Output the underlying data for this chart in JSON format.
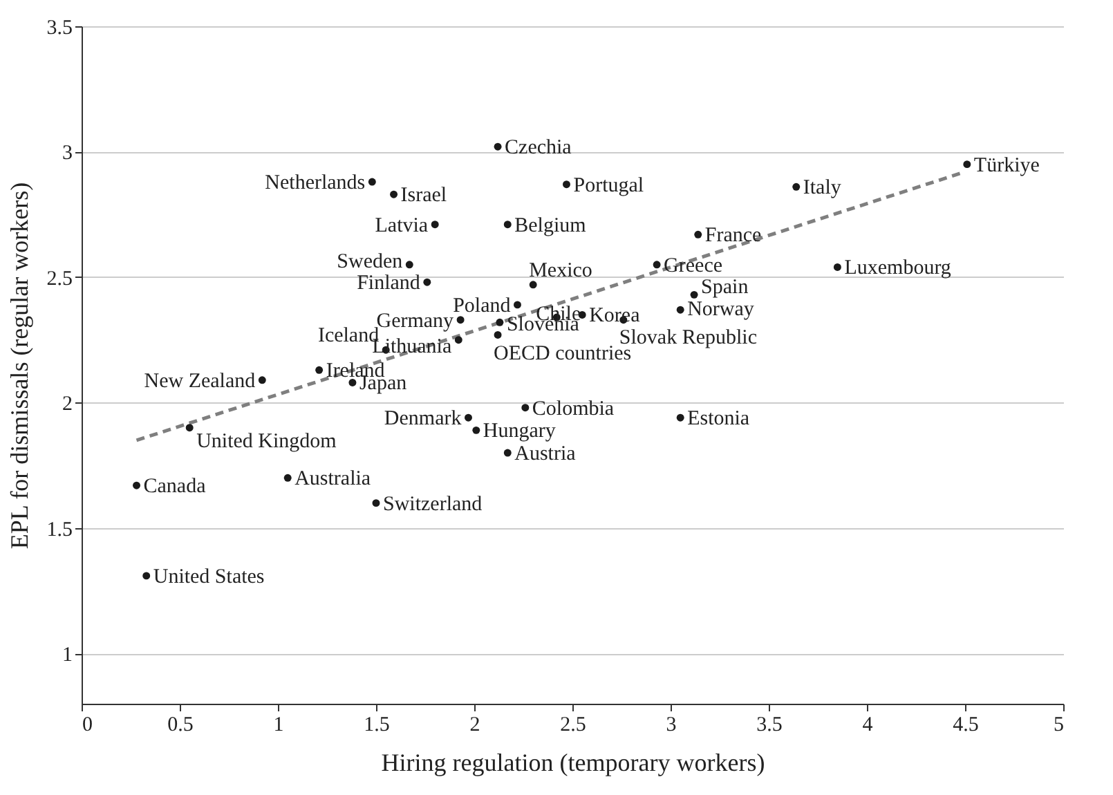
{
  "chart_data": {
    "type": "scatter",
    "xlabel": "Hiring regulation (temporary workers)",
    "ylabel": "EPL for dismissals (regular workers)",
    "xlim": [
      0,
      5
    ],
    "xticks": [
      0,
      0.5,
      1,
      1.5,
      2,
      2.5,
      3,
      3.5,
      4,
      4.5,
      5
    ],
    "ylim": [
      0.8,
      3.5
    ],
    "yticks": [
      1,
      1.5,
      2,
      2.5,
      3,
      3.5
    ],
    "grid": "y",
    "marker": "circle",
    "series": [
      {
        "name": "Czechia",
        "color": "#1a1a1a",
        "x": [
          2.12
        ],
        "values": [
          3.02
        ]
      },
      {
        "name": "Netherlands",
        "color": "#1a1a1a",
        "x": [
          1.48
        ],
        "values": [
          2.88
        ]
      },
      {
        "name": "Israel",
        "color": "#1a1a1a",
        "x": [
          1.59
        ],
        "values": [
          2.83
        ]
      },
      {
        "name": "Portugal",
        "color": "#1a1a1a",
        "x": [
          2.47
        ],
        "values": [
          2.87
        ]
      },
      {
        "name": "Italy",
        "color": "#1a1a1a",
        "x": [
          3.64
        ],
        "values": [
          2.86
        ]
      },
      {
        "name": "Türkiye",
        "color": "#1a1a1a",
        "x": [
          4.51
        ],
        "values": [
          2.95
        ]
      },
      {
        "name": "Latvia",
        "color": "#1a1a1a",
        "x": [
          1.8
        ],
        "values": [
          2.71
        ]
      },
      {
        "name": "Belgium",
        "color": "#1a1a1a",
        "x": [
          2.17
        ],
        "values": [
          2.71
        ]
      },
      {
        "name": "France",
        "color": "#1a1a1a",
        "x": [
          3.14
        ],
        "values": [
          2.67
        ]
      },
      {
        "name": "Sweden",
        "color": "#1a1a1a",
        "x": [
          1.67
        ],
        "values": [
          2.55
        ]
      },
      {
        "name": "Greece",
        "color": "#1a1a1a",
        "x": [
          2.93
        ],
        "values": [
          2.55
        ]
      },
      {
        "name": "Luxembourg",
        "color": "#1a1a1a",
        "x": [
          3.85
        ],
        "values": [
          2.54
        ]
      },
      {
        "name": "Finland",
        "color": "#1a1a1a",
        "x": [
          1.76
        ],
        "values": [
          2.48
        ]
      },
      {
        "name": "Mexico",
        "color": "#1a1a1a",
        "x": [
          2.3
        ],
        "values": [
          2.47
        ]
      },
      {
        "name": "Spain",
        "color": "#1a1a1a",
        "x": [
          3.12
        ],
        "values": [
          2.43
        ]
      },
      {
        "name": "Poland",
        "color": "#1a1a1a",
        "x": [
          2.22
        ],
        "values": [
          2.39
        ]
      },
      {
        "name": "Chile",
        "color": "#1a1a1a",
        "x": [
          2.42
        ],
        "values": [
          2.34
        ]
      },
      {
        "name": "Norway",
        "color": "#1a1a1a",
        "x": [
          3.05
        ],
        "values": [
          2.37
        ]
      },
      {
        "name": "Korea",
        "color": "#1a1a1a",
        "x": [
          2.55
        ],
        "values": [
          2.35
        ]
      },
      {
        "name": "Germany",
        "color": "#1a1a1a",
        "x": [
          1.93
        ],
        "values": [
          2.33
        ]
      },
      {
        "name": "Slovenia",
        "color": "#1a1a1a",
        "x": [
          2.13
        ],
        "values": [
          2.32
        ]
      },
      {
        "name": "Slovak Republic",
        "color": "#1a1a1a",
        "x": [
          2.76
        ],
        "values": [
          2.33
        ]
      },
      {
        "name": "OECD countries",
        "color": "#1a1a1a",
        "x": [
          2.12
        ],
        "values": [
          2.27
        ]
      },
      {
        "name": "Lithuania",
        "color": "#1a1a1a",
        "x": [
          1.92
        ],
        "values": [
          2.25
        ]
      },
      {
        "name": "Iceland",
        "color": "#1a1a1a",
        "x": [
          1.55
        ],
        "values": [
          2.21
        ]
      },
      {
        "name": "Ireland",
        "color": "#1a1a1a",
        "x": [
          1.21
        ],
        "values": [
          2.13
        ]
      },
      {
        "name": "New Zealand",
        "color": "#1a1a1a",
        "x": [
          0.92
        ],
        "values": [
          2.09
        ]
      },
      {
        "name": "Japan",
        "color": "#1a1a1a",
        "x": [
          1.38
        ],
        "values": [
          2.08
        ]
      },
      {
        "name": "Colombia",
        "color": "#1a1a1a",
        "x": [
          2.26
        ],
        "values": [
          1.98
        ]
      },
      {
        "name": "Denmark",
        "color": "#1a1a1a",
        "x": [
          1.97
        ],
        "values": [
          1.94
        ]
      },
      {
        "name": "Estonia",
        "color": "#1a1a1a",
        "x": [
          3.05
        ],
        "values": [
          1.94
        ]
      },
      {
        "name": "United Kingdom",
        "color": "#1a1a1a",
        "x": [
          0.55
        ],
        "values": [
          1.9
        ]
      },
      {
        "name": "Hungary",
        "color": "#1a1a1a",
        "x": [
          2.01
        ],
        "values": [
          1.89
        ]
      },
      {
        "name": "Austria",
        "color": "#1a1a1a",
        "x": [
          2.17
        ],
        "values": [
          1.8
        ]
      },
      {
        "name": "Australia",
        "color": "#1a1a1a",
        "x": [
          1.05
        ],
        "values": [
          1.7
        ]
      },
      {
        "name": "Canada",
        "color": "#1a1a1a",
        "x": [
          0.28
        ],
        "values": [
          1.67
        ]
      },
      {
        "name": "Switzerland",
        "color": "#1a1a1a",
        "x": [
          1.5
        ],
        "values": [
          1.6
        ]
      },
      {
        "name": "United States",
        "color": "#1a1a1a",
        "x": [
          0.33
        ],
        "values": [
          1.31
        ]
      },
      {
        "type": "line",
        "color": "#7f7f7f",
        "line_style": "dashed",
        "marker": "none",
        "x": [
          0.28,
          4.5
        ],
        "values": [
          1.85,
          2.92
        ]
      }
    ]
  }
}
